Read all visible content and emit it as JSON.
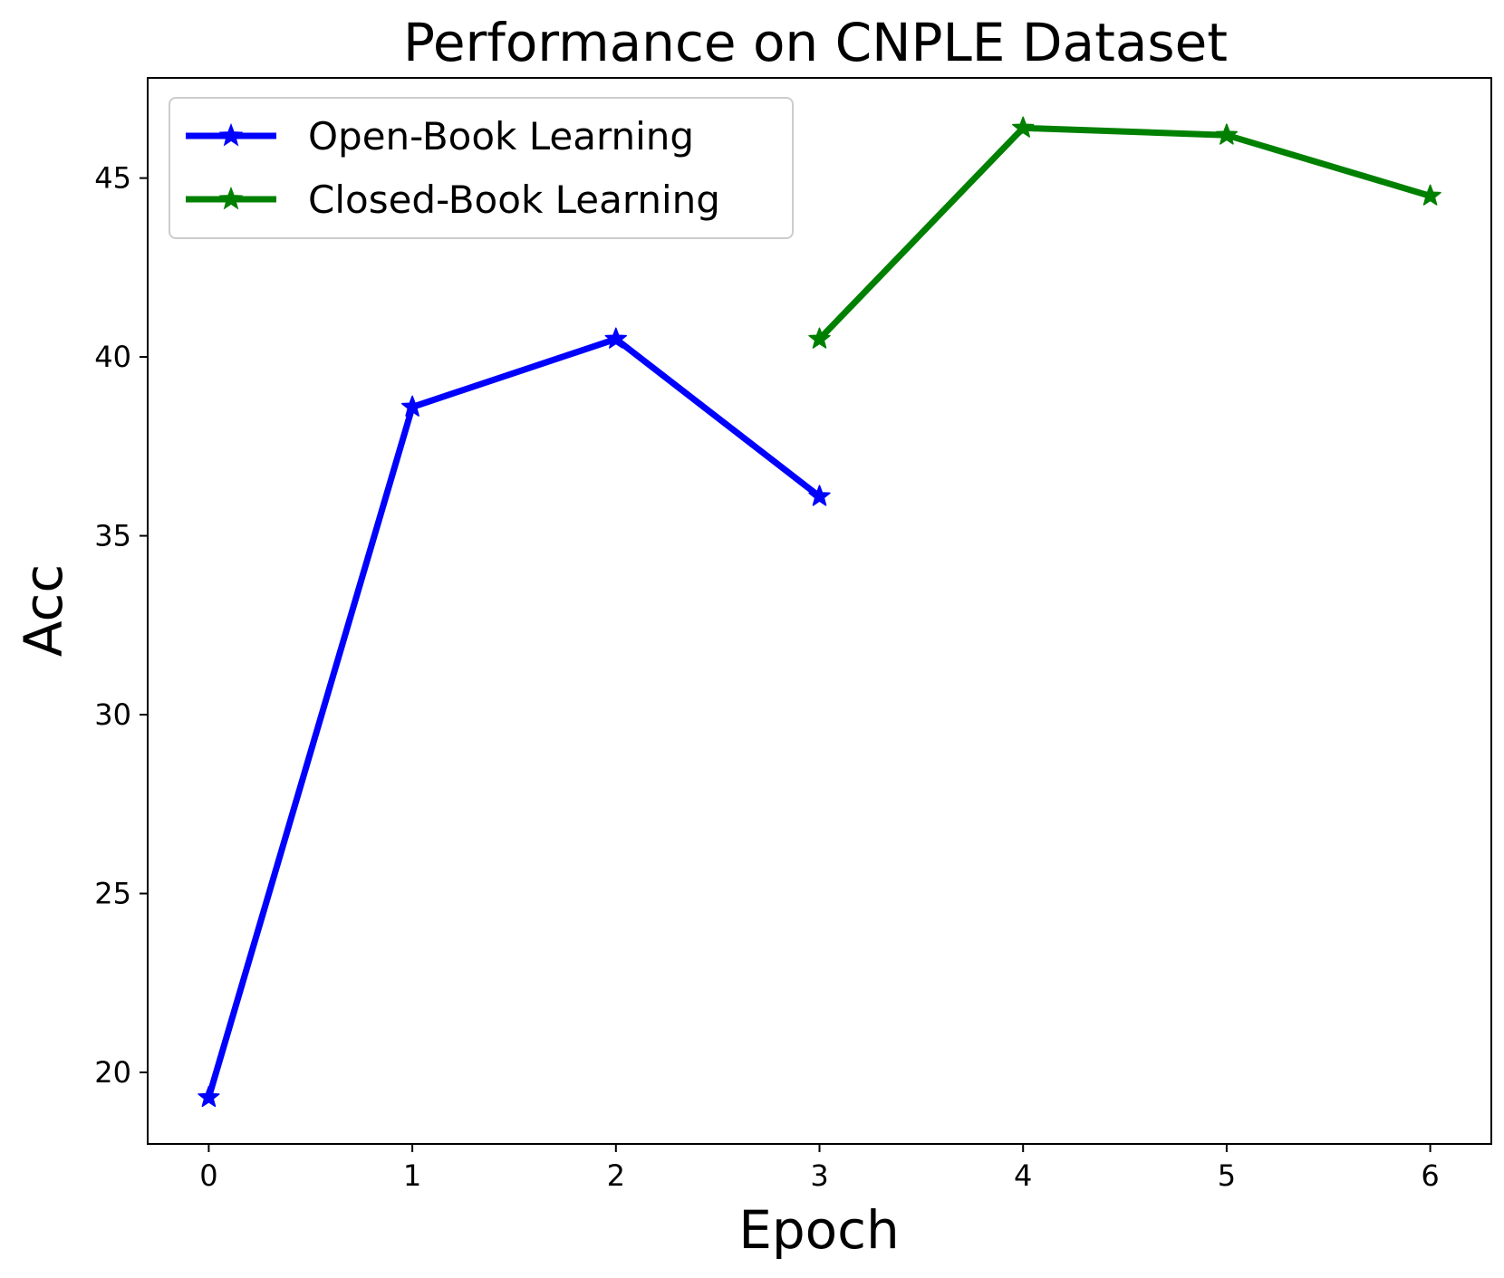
{
  "chart_data": {
    "type": "line",
    "title": "Performance on CNPLE Dataset",
    "xlabel": "Epoch",
    "ylabel": "Acc",
    "xlim": [
      -0.3,
      6.3
    ],
    "ylim": [
      18,
      47.8
    ],
    "xticks": [
      0,
      1,
      2,
      3,
      4,
      5,
      6
    ],
    "yticks": [
      20,
      25,
      30,
      35,
      40,
      45
    ],
    "grid": false,
    "legend_position": "top-left",
    "marker": "star",
    "series": [
      {
        "name": "Open-Book Learning",
        "color": "#0000ff",
        "x": [
          0,
          1,
          2,
          3
        ],
        "y": [
          19.3,
          38.6,
          40.5,
          36.1
        ]
      },
      {
        "name": "Closed-Book Learning",
        "color": "#008000",
        "x": [
          3,
          4,
          5,
          6
        ],
        "y": [
          40.5,
          46.4,
          46.2,
          44.5
        ]
      }
    ]
  }
}
